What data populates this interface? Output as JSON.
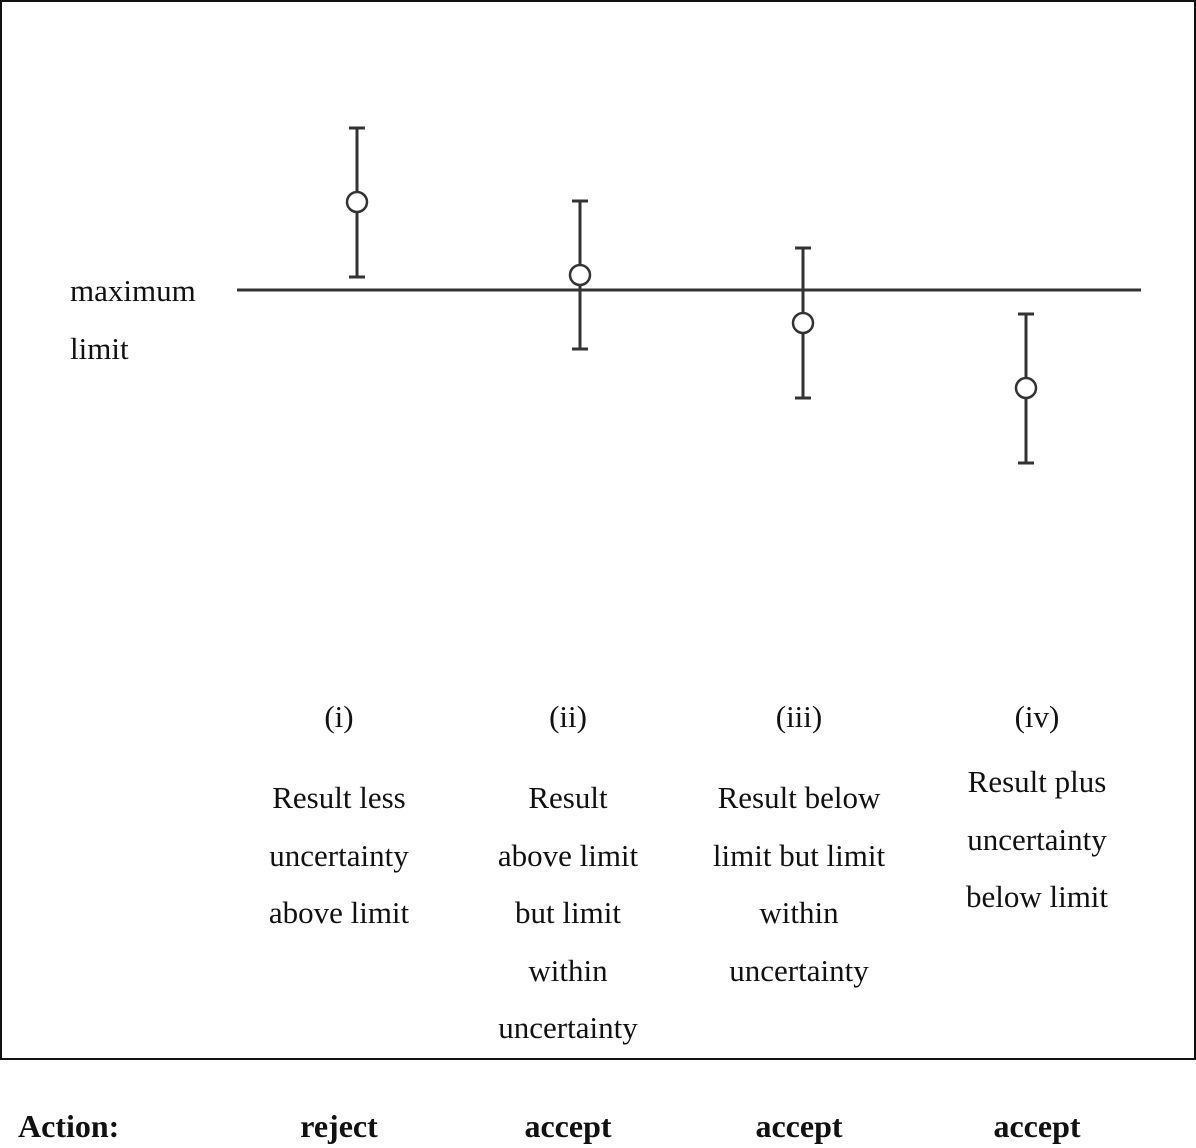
{
  "limit_label": [
    "maximum",
    "limit"
  ],
  "cases": [
    {
      "numeral": "(i)",
      "description": [
        "Result less",
        "uncertainty",
        "above limit"
      ],
      "action": "reject"
    },
    {
      "numeral": "(ii)",
      "description": [
        "Result",
        "above limit",
        "but limit",
        "within",
        "uncertainty"
      ],
      "action": "accept"
    },
    {
      "numeral": "(iii)",
      "description": [
        "Result below",
        "limit but limit",
        "within",
        "uncertainty"
      ],
      "action": "accept"
    },
    {
      "numeral": "(iv)",
      "description": [
        "Result plus",
        "uncertainty",
        "below limit"
      ],
      "action": "accept"
    }
  ],
  "action_label": "Action:",
  "colors": {
    "line": "#333333",
    "marker_fill": "#ffffff"
  }
}
